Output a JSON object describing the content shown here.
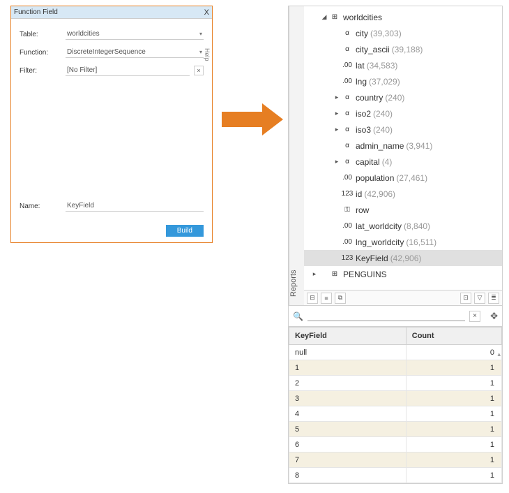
{
  "dialog": {
    "title": "Function Field",
    "close": "X",
    "table_label": "Table:",
    "table_value": "worldcities",
    "function_label": "Function:",
    "function_value": "DiscreteIntegerSequence",
    "filter_label": "Filter:",
    "filter_value": "[No Filter]",
    "name_label": "Name:",
    "name_value": "KeyField",
    "build_label": "Build",
    "help_label": "Help"
  },
  "arrow_color": "#e67e22",
  "reports_tab": "Reports",
  "tree": {
    "root": "worldcities",
    "items": [
      {
        "expander": "",
        "icon": "α",
        "label": "city",
        "count": "(39,303)"
      },
      {
        "expander": "",
        "icon": "α",
        "label": "city_ascii",
        "count": "(39,188)"
      },
      {
        "expander": "",
        "icon": ".00",
        "label": "lat",
        "count": "(34,583)"
      },
      {
        "expander": "",
        "icon": ".00",
        "label": "lng",
        "count": "(37,029)"
      },
      {
        "expander": ">",
        "icon": "α",
        "label": "country",
        "count": "(240)"
      },
      {
        "expander": ">",
        "icon": "α",
        "label": "iso2",
        "count": "(240)"
      },
      {
        "expander": ">",
        "icon": "α",
        "label": "iso3",
        "count": "(240)"
      },
      {
        "expander": "",
        "icon": "α",
        "label": "admin_name",
        "count": "(3,941)"
      },
      {
        "expander": ">",
        "icon": "α",
        "label": "capital",
        "count": "(4)"
      },
      {
        "expander": "",
        "icon": ".00",
        "label": "population",
        "count": "(27,461)"
      },
      {
        "expander": "",
        "icon": "123",
        "label": "id",
        "count": "(42,906)"
      },
      {
        "expander": "",
        "icon": "⚿",
        "label": "row",
        "count": ""
      },
      {
        "expander": "",
        "icon": ".00",
        "label": "lat_worldcity",
        "count": "(8,840)"
      },
      {
        "expander": "",
        "icon": ".00",
        "label": "lng_worldcity",
        "count": "(16,511)"
      },
      {
        "expander": "",
        "icon": "123",
        "label": "KeyField",
        "count": "(42,906)",
        "selected": true
      }
    ],
    "penguins_label": "PENGUINS"
  },
  "table": {
    "col1": "KeyField",
    "col2": "Count",
    "rows": [
      {
        "k": "null",
        "c": "0",
        "alt": false
      },
      {
        "k": "1",
        "c": "1",
        "alt": true
      },
      {
        "k": "2",
        "c": "1",
        "alt": false
      },
      {
        "k": "3",
        "c": "1",
        "alt": true
      },
      {
        "k": "4",
        "c": "1",
        "alt": false
      },
      {
        "k": "5",
        "c": "1",
        "alt": true
      },
      {
        "k": "6",
        "c": "1",
        "alt": false
      },
      {
        "k": "7",
        "c": "1",
        "alt": true
      },
      {
        "k": "8",
        "c": "1",
        "alt": false
      }
    ]
  },
  "colors": {
    "dialog_border": "#e67e22",
    "titlebar_bg": "#d7e8f5",
    "build_btn": "#3498db",
    "selected_row": "#e0e0e0",
    "alt_row": "#f5f0e1",
    "count_text": "#999999"
  }
}
